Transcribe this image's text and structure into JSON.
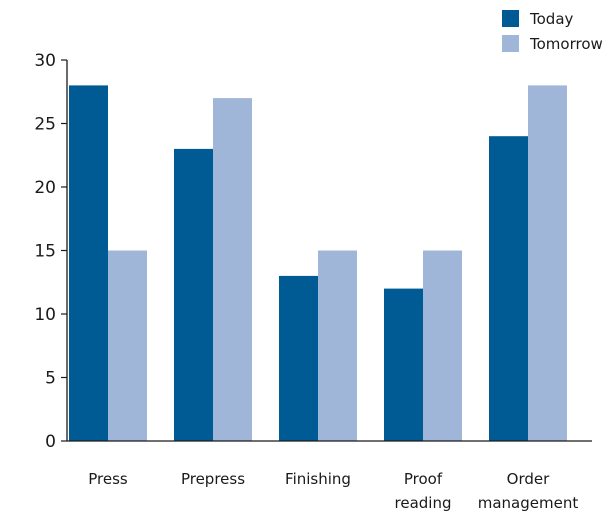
{
  "chart_data": {
    "type": "bar",
    "categories": [
      [
        "Press"
      ],
      [
        "Prepress"
      ],
      [
        "Finishing"
      ],
      [
        "Proof",
        "reading"
      ],
      [
        "Order",
        "management"
      ]
    ],
    "series": [
      {
        "name": "Today",
        "color": "#005a93",
        "values": [
          28,
          23,
          13,
          12,
          24
        ]
      },
      {
        "name": "Tomorrow",
        "color": "#9fb6d8",
        "values": [
          15,
          27,
          15,
          15,
          28
        ]
      }
    ],
    "ylim": [
      0,
      30
    ],
    "yticks": [
      "0",
      "5",
      "10",
      "15",
      "20",
      "25",
      "30"
    ],
    "ytick_values": [
      0,
      5,
      10,
      15,
      20,
      25,
      30
    ],
    "legend_position": "top-right",
    "grid": false,
    "title": "",
    "xlabel": "",
    "ylabel": ""
  }
}
